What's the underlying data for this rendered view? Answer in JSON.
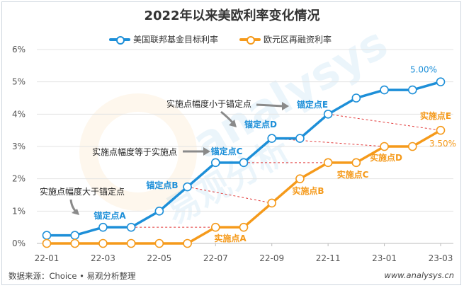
{
  "chart_data": {
    "type": "line",
    "title": "2022年以来美欧利率变化情况",
    "categories": [
      "22-01",
      "22-02",
      "22-03",
      "22-04",
      "22-05",
      "22-06",
      "22-07",
      "22-08",
      "22-09",
      "22-10",
      "22-11",
      "22-12",
      "23-01",
      "23-02",
      "23-03"
    ],
    "x_tick_labels": [
      "22-01",
      "22-03",
      "22-05",
      "22-07",
      "22-09",
      "22-11",
      "23-01",
      "23-03"
    ],
    "y_tick_labels": [
      "0%",
      "1%",
      "2%",
      "3%",
      "4%",
      "5%",
      "6%"
    ],
    "ylim": [
      0,
      6
    ],
    "series": [
      {
        "name": "美国联邦基金目标利率",
        "color": "#1d8fd8",
        "values": [
          0.25,
          0.25,
          0.5,
          0.5,
          1.0,
          1.75,
          2.5,
          2.5,
          3.25,
          3.25,
          4.0,
          4.5,
          4.75,
          4.75,
          5.0
        ]
      },
      {
        "name": "欧元区再融资利率",
        "color": "#f59a1b",
        "values": [
          0,
          0,
          0,
          0,
          0,
          0,
          0.5,
          0.5,
          1.25,
          2.0,
          2.5,
          2.5,
          3.0,
          3.0,
          3.5
        ]
      }
    ],
    "end_labels": {
      "us": "5.00%",
      "eu": "3.50%"
    },
    "legend_position": "top",
    "annotations": {
      "anchor_points": [
        "锚定点A",
        "锚定点B",
        "锚定点C",
        "锚定点D",
        "锚定点E"
      ],
      "implementation_points": [
        "实施点A",
        "实施点B",
        "实施点C",
        "实施点D",
        "实施点E"
      ],
      "notes": [
        "实施点幅度大于锚定点",
        "实施点幅度等于实施点",
        "实施点幅度小于锚定点"
      ]
    }
  },
  "watermark": "analysys 易观分析",
  "footer": {
    "source": "数据来源：Choice • 易观分析整理",
    "site": "www.analysys.cn"
  }
}
